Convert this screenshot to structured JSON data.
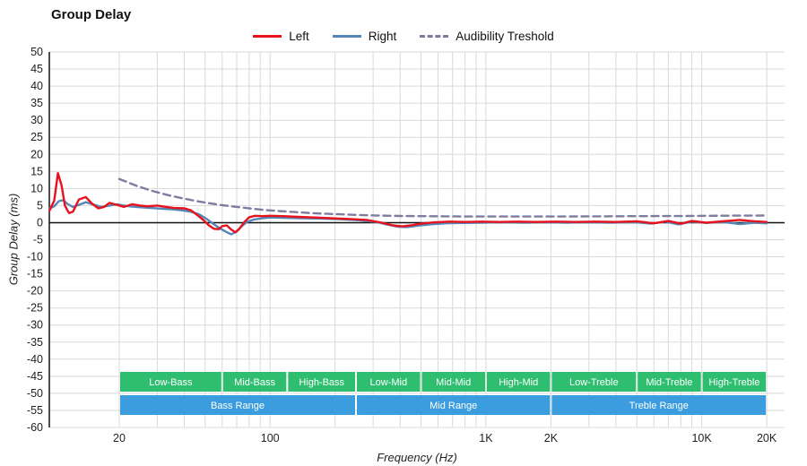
{
  "chart_data": {
    "type": "line",
    "title": "Group Delay",
    "xlabel": "Frequency (Hz)",
    "ylabel": "Group Delay (ms)",
    "x_scale": "log",
    "x_range_hz": [
      9.5,
      21000
    ],
    "y_range_ms": [
      -60,
      50
    ],
    "y_tick_step": 5,
    "grid": true,
    "legend_position": "top-center",
    "colors": {
      "grid": "#d9d9d9",
      "axis": "#111111",
      "band_sub": "#2fbe70",
      "band_main": "#3b9ddd"
    },
    "x_ticks": [
      {
        "hz": 20,
        "label": "20"
      },
      {
        "hz": 100,
        "label": "100"
      },
      {
        "hz": 1000,
        "label": "1K"
      },
      {
        "hz": 2000,
        "label": "2K"
      },
      {
        "hz": 10000,
        "label": "10K"
      },
      {
        "hz": 20000,
        "label": "20K"
      }
    ],
    "x_gridlines_hz": [
      20,
      30,
      40,
      50,
      60,
      70,
      80,
      90,
      100,
      200,
      300,
      400,
      500,
      600,
      700,
      800,
      900,
      1000,
      2000,
      3000,
      4000,
      5000,
      6000,
      7000,
      8000,
      9000,
      10000,
      20000
    ],
    "series": [
      {
        "name": "Left",
        "color": "#e8121d",
        "style": "solid",
        "points": [
          [
            9.5,
            3.5
          ],
          [
            10,
            6.5
          ],
          [
            10.4,
            14.5
          ],
          [
            10.8,
            11
          ],
          [
            11.2,
            5
          ],
          [
            11.7,
            2.8
          ],
          [
            12.2,
            3.2
          ],
          [
            13,
            6.8
          ],
          [
            14,
            7.5
          ],
          [
            15,
            5.5
          ],
          [
            16,
            4.2
          ],
          [
            17,
            4.6
          ],
          [
            18,
            5.8
          ],
          [
            19.5,
            5.2
          ],
          [
            21,
            4.6
          ],
          [
            23,
            5.4
          ],
          [
            25,
            5
          ],
          [
            27,
            4.8
          ],
          [
            30,
            5
          ],
          [
            33,
            4.6
          ],
          [
            36,
            4.3
          ],
          [
            40,
            4.2
          ],
          [
            43,
            3.6
          ],
          [
            46,
            2.2
          ],
          [
            49,
            0.8
          ],
          [
            52,
            -0.8
          ],
          [
            55,
            -1.8
          ],
          [
            58,
            -1.9
          ],
          [
            60,
            -1
          ],
          [
            63,
            -0.8
          ],
          [
            66,
            -2
          ],
          [
            69,
            -2.8
          ],
          [
            72,
            -1.8
          ],
          [
            76,
            0.2
          ],
          [
            80,
            1.6
          ],
          [
            85,
            2
          ],
          [
            92,
            1.9
          ],
          [
            100,
            2
          ],
          [
            115,
            1.9
          ],
          [
            135,
            1.7
          ],
          [
            160,
            1.5
          ],
          [
            190,
            1.3
          ],
          [
            230,
            1.1
          ],
          [
            280,
            0.8
          ],
          [
            330,
            0
          ],
          [
            370,
            -0.8
          ],
          [
            410,
            -1.1
          ],
          [
            450,
            -0.8
          ],
          [
            500,
            -0.3
          ],
          [
            580,
            0.1
          ],
          [
            680,
            0.3
          ],
          [
            800,
            0.2
          ],
          [
            950,
            0.3
          ],
          [
            1150,
            0.2
          ],
          [
            1400,
            0.3
          ],
          [
            1700,
            0.2
          ],
          [
            2100,
            0.3
          ],
          [
            2600,
            0.2
          ],
          [
            3200,
            0.3
          ],
          [
            4000,
            0.2
          ],
          [
            5000,
            0.4
          ],
          [
            6000,
            -0.2
          ],
          [
            7000,
            0.5
          ],
          [
            8000,
            -0.3
          ],
          [
            9000,
            0.5
          ],
          [
            10500,
            0
          ],
          [
            12500,
            0.4
          ],
          [
            15000,
            0.8
          ],
          [
            17500,
            0.4
          ],
          [
            20000,
            0.2
          ]
        ]
      },
      {
        "name": "Right",
        "color": "#5586b8",
        "style": "solid",
        "points": [
          [
            9.5,
            4.2
          ],
          [
            10,
            4.8
          ],
          [
            10.5,
            6.3
          ],
          [
            11,
            6.6
          ],
          [
            11.5,
            5.5
          ],
          [
            12.2,
            4.6
          ],
          [
            13,
            5.2
          ],
          [
            14,
            6
          ],
          [
            15,
            5.4
          ],
          [
            16.5,
            4.6
          ],
          [
            18,
            5
          ],
          [
            19.5,
            5.4
          ],
          [
            21,
            5
          ],
          [
            23,
            4.7
          ],
          [
            25,
            4.5
          ],
          [
            28,
            4.3
          ],
          [
            31,
            4.1
          ],
          [
            35,
            3.9
          ],
          [
            39,
            3.6
          ],
          [
            43,
            3.2
          ],
          [
            47,
            2.4
          ],
          [
            51,
            1
          ],
          [
            55,
            -0.5
          ],
          [
            59,
            -1.8
          ],
          [
            63,
            -2.8
          ],
          [
            66,
            -3.4
          ],
          [
            70,
            -2.6
          ],
          [
            74,
            -1
          ],
          [
            78,
            0.2
          ],
          [
            84,
            0.9
          ],
          [
            92,
            1.3
          ],
          [
            100,
            1.5
          ],
          [
            115,
            1.4
          ],
          [
            140,
            1.3
          ],
          [
            170,
            1.2
          ],
          [
            210,
            1
          ],
          [
            260,
            0.7
          ],
          [
            310,
            0.2
          ],
          [
            350,
            -0.6
          ],
          [
            390,
            -1.2
          ],
          [
            430,
            -1.3
          ],
          [
            480,
            -0.9
          ],
          [
            550,
            -0.5
          ],
          [
            650,
            -0.2
          ],
          [
            780,
            -0.1
          ],
          [
            950,
            0
          ],
          [
            1200,
            0.1
          ],
          [
            1500,
            0
          ],
          [
            1900,
            0.1
          ],
          [
            2400,
            0
          ],
          [
            3000,
            0.1
          ],
          [
            3800,
            0
          ],
          [
            4800,
            0.2
          ],
          [
            5800,
            -0.3
          ],
          [
            6800,
            0.3
          ],
          [
            7800,
            -0.5
          ],
          [
            9000,
            0.3
          ],
          [
            10500,
            -0.1
          ],
          [
            12500,
            0.2
          ],
          [
            15000,
            -0.4
          ],
          [
            17500,
            0
          ],
          [
            20000,
            -0.2
          ]
        ]
      },
      {
        "name": "Audibility Treshold",
        "color": "#7d7da0",
        "style": "dashed",
        "points": [
          [
            20,
            12.8
          ],
          [
            24,
            10.8
          ],
          [
            28,
            9.4
          ],
          [
            33,
            8.2
          ],
          [
            38,
            7.3
          ],
          [
            45,
            6.4
          ],
          [
            52,
            5.7
          ],
          [
            60,
            5.1
          ],
          [
            70,
            4.6
          ],
          [
            82,
            4.1
          ],
          [
            95,
            3.7
          ],
          [
            110,
            3.4
          ],
          [
            130,
            3.1
          ],
          [
            155,
            2.8
          ],
          [
            185,
            2.6
          ],
          [
            220,
            2.4
          ],
          [
            270,
            2.2
          ],
          [
            330,
            2.05
          ],
          [
            400,
            1.95
          ],
          [
            500,
            1.9
          ],
          [
            650,
            1.85
          ],
          [
            850,
            1.8
          ],
          [
            1100,
            1.8
          ],
          [
            1500,
            1.8
          ],
          [
            2000,
            1.8
          ],
          [
            2700,
            1.82
          ],
          [
            3600,
            1.85
          ],
          [
            4800,
            1.9
          ],
          [
            6500,
            1.92
          ],
          [
            8500,
            1.95
          ],
          [
            11000,
            2
          ],
          [
            14000,
            2.05
          ],
          [
            20000,
            2.1
          ]
        ]
      }
    ],
    "bands": {
      "sub": [
        {
          "label": "Low-Bass",
          "from": 20,
          "to": 60
        },
        {
          "label": "Mid-Bass",
          "from": 60,
          "to": 120
        },
        {
          "label": "High-Bass",
          "from": 120,
          "to": 250
        },
        {
          "label": "Low-Mid",
          "from": 250,
          "to": 500
        },
        {
          "label": "Mid-Mid",
          "from": 500,
          "to": 1000
        },
        {
          "label": "High-Mid",
          "from": 1000,
          "to": 2000
        },
        {
          "label": "Low-Treble",
          "from": 2000,
          "to": 5000
        },
        {
          "label": "Mid-Treble",
          "from": 5000,
          "to": 10000
        },
        {
          "label": "High-Treble",
          "from": 10000,
          "to": 20000
        }
      ],
      "main": [
        {
          "label": "Bass Range",
          "from": 20,
          "to": 250
        },
        {
          "label": "Mid Range",
          "from": 250,
          "to": 2000
        },
        {
          "label": "Treble Range",
          "from": 2000,
          "to": 20000
        }
      ]
    }
  }
}
